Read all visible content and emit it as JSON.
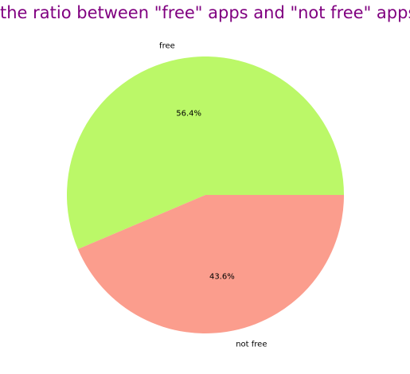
{
  "chart_data": {
    "type": "pie",
    "title": "the ratio between \"free\" apps and \"not free\" apps",
    "slices": [
      {
        "label": "free",
        "value": 56.4,
        "pct_label": "56.4%",
        "color": "#bbf868"
      },
      {
        "label": "not free",
        "value": 43.6,
        "pct_label": "43.6%",
        "color": "#fb9d8d"
      }
    ],
    "start_angle_deg": 0,
    "direction": "counterclockwise"
  },
  "colors": {
    "title": "#800080",
    "background": "#ffffff"
  }
}
